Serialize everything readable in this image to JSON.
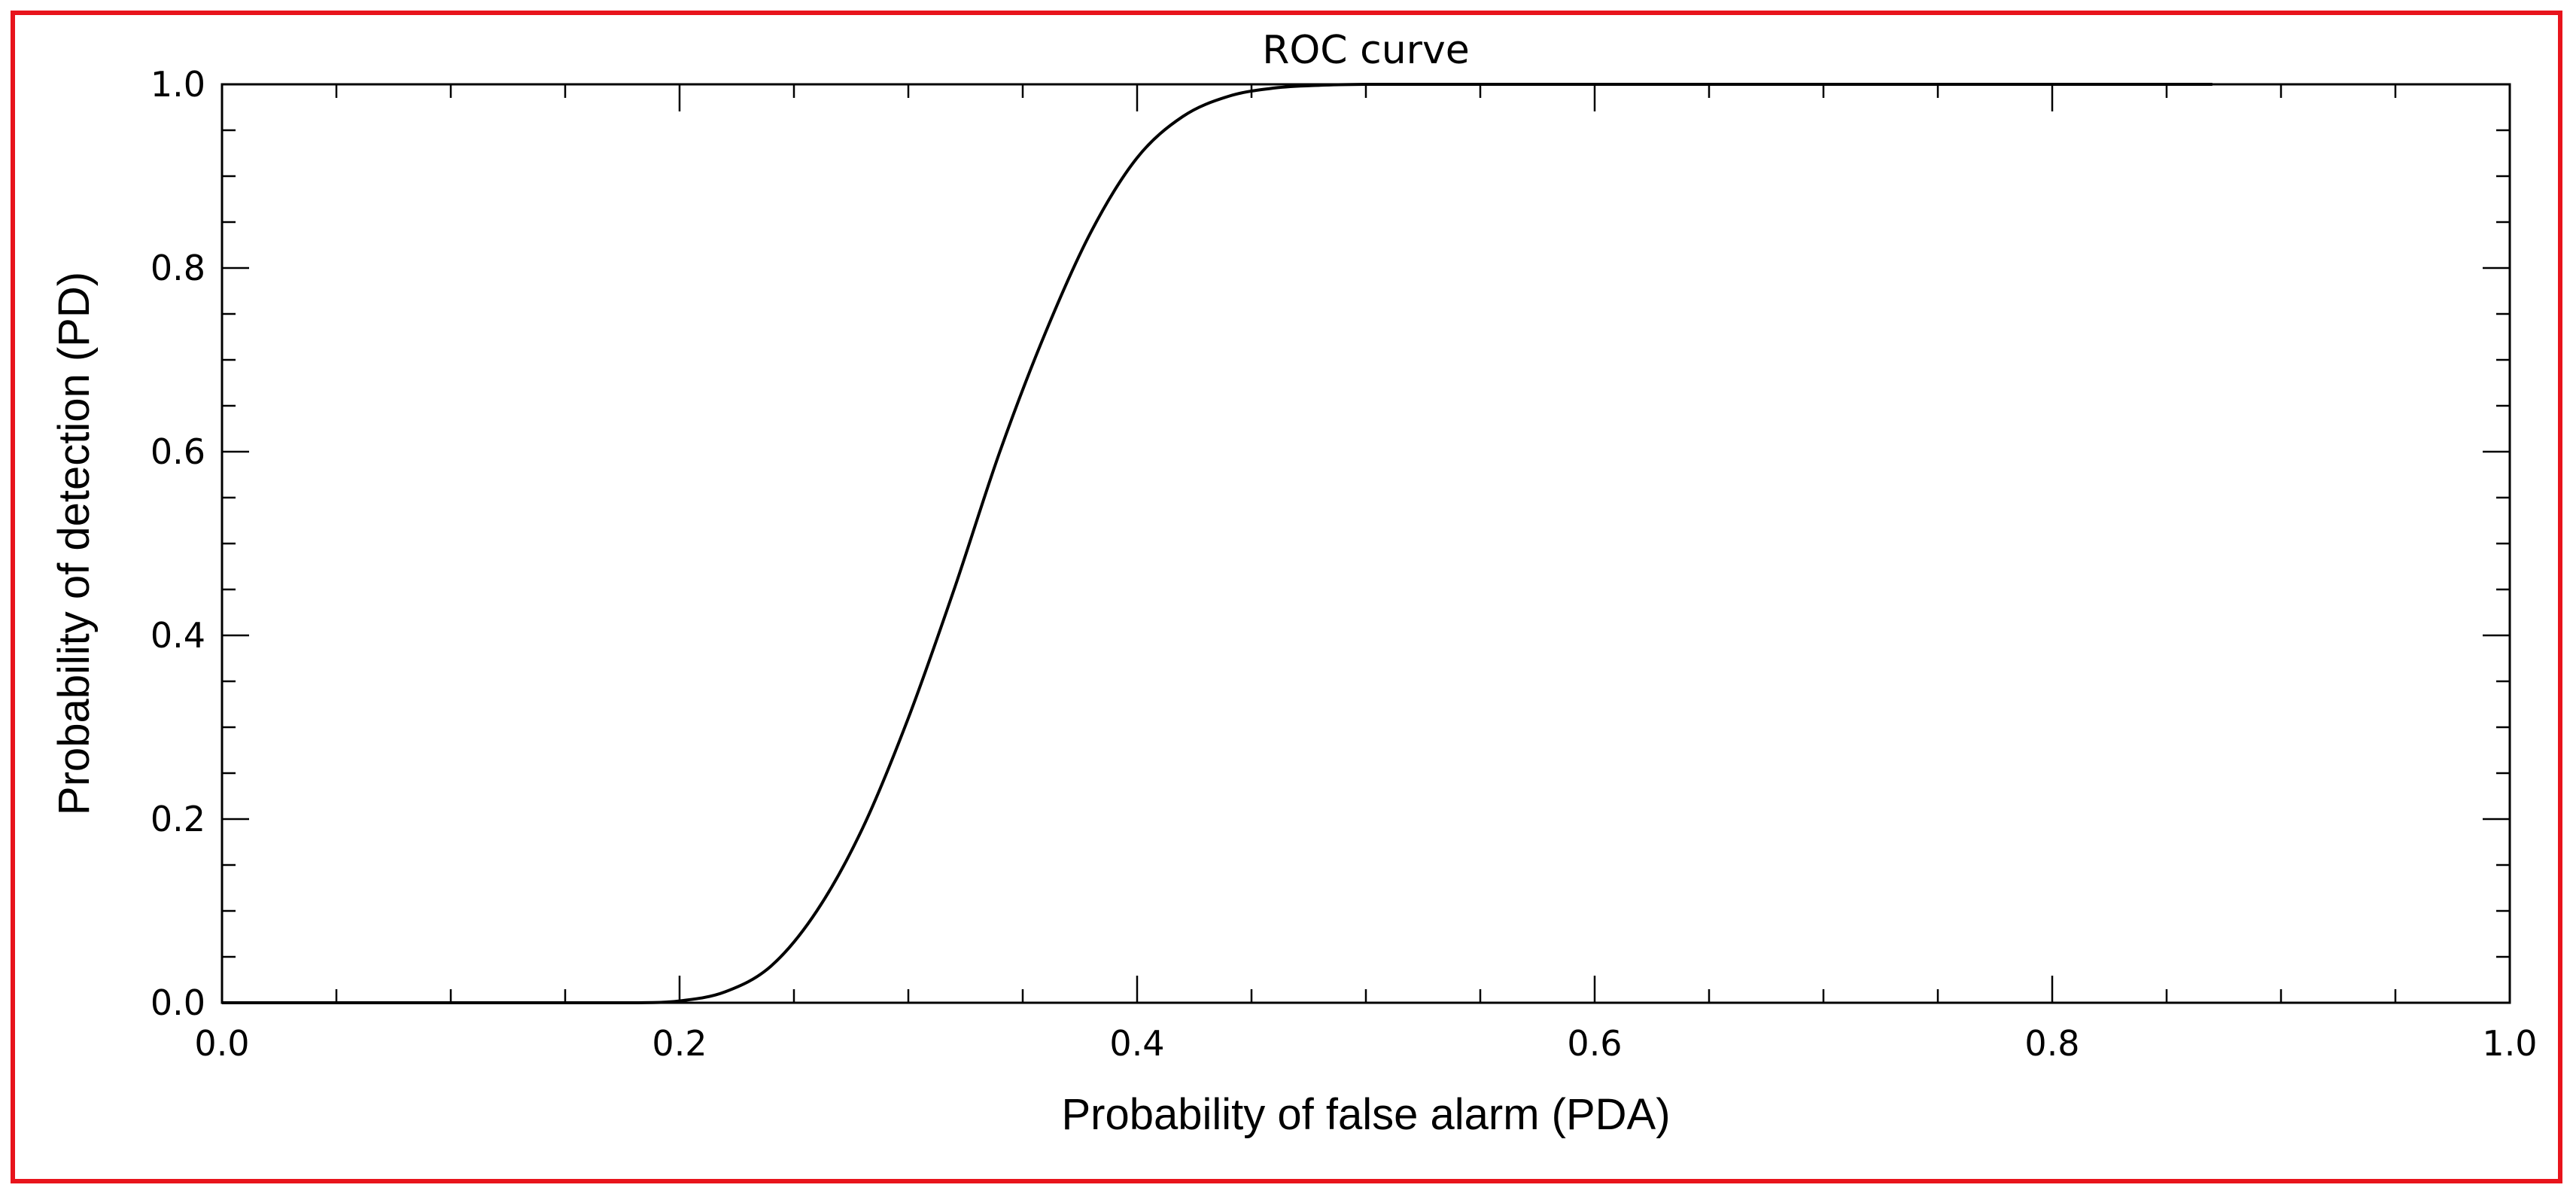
{
  "chart_data": {
    "type": "line",
    "title": "ROC curve",
    "xlabel": "Probability of false alarm (PDA)",
    "ylabel": "Probability of detection (PD)",
    "xlim": [
      0.0,
      1.0
    ],
    "ylim": [
      0.0,
      1.0
    ],
    "x_ticks": [
      "0.0",
      "0.2",
      "0.4",
      "0.6",
      "0.8",
      "1.0"
    ],
    "y_ticks": [
      "0.0",
      "0.2",
      "0.4",
      "0.6",
      "0.8",
      "1.0"
    ],
    "grid": false,
    "legend": "none",
    "line_color": "#000000",
    "frame_color": "#e8141c",
    "series": [
      {
        "x": [
          0.0,
          0.05,
          0.1,
          0.15,
          0.18,
          0.2,
          0.22,
          0.24,
          0.26,
          0.28,
          0.3,
          0.32,
          0.34,
          0.36,
          0.38,
          0.4,
          0.42,
          0.44,
          0.46,
          0.48,
          0.5,
          0.55,
          0.6,
          0.7,
          0.8,
          0.87
        ],
        "y": [
          0.0,
          0.0,
          0.0,
          0.0,
          0.0,
          0.002,
          0.012,
          0.04,
          0.1,
          0.19,
          0.31,
          0.45,
          0.6,
          0.73,
          0.84,
          0.92,
          0.965,
          0.987,
          0.996,
          0.999,
          1.0,
          1.0,
          1.0,
          1.0,
          1.0,
          1.0
        ]
      }
    ]
  }
}
